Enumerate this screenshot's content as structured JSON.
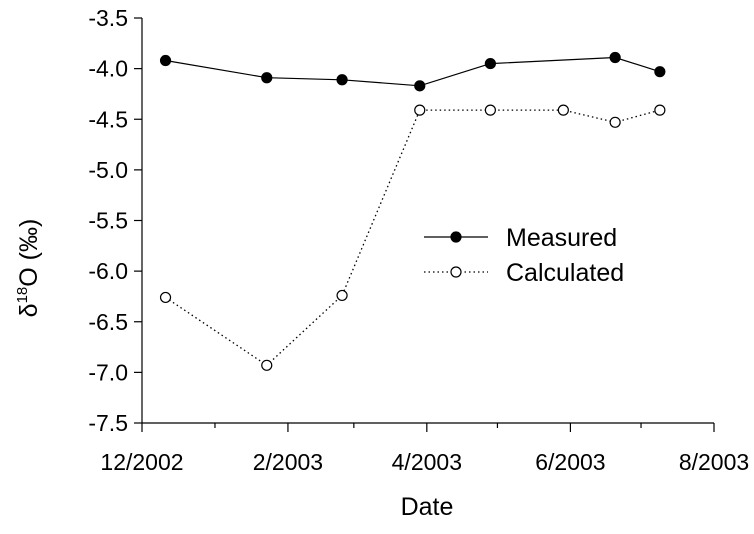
{
  "chart_data": {
    "type": "line",
    "xlabel": "Date",
    "ylabel": {
      "prefix": "δ",
      "superscript": "18",
      "suffix": "O (‰)"
    },
    "xlim": [
      "2002-12-01",
      "2003-08-01"
    ],
    "ylim": [
      -7.5,
      -3.5
    ],
    "x_ticks": [
      {
        "date": "2002-12-01",
        "label": "12/2002"
      },
      {
        "date": "2003-02-01",
        "label": "2/2003"
      },
      {
        "date": "2003-04-01",
        "label": "4/2003"
      },
      {
        "date": "2003-06-01",
        "label": "6/2003"
      },
      {
        "date": "2003-08-01",
        "label": "8/2003"
      }
    ],
    "x_minor_ticks": [
      "2003-01-01",
      "2003-03-01",
      "2003-05-01",
      "2003-07-01"
    ],
    "y_ticks": [
      -7.5,
      -7.0,
      -6.5,
      -6.0,
      -5.5,
      -5.0,
      -4.5,
      -4.0,
      -3.5
    ],
    "y_tick_labels": [
      "-7.5",
      "-7.0",
      "-6.5",
      "-6.0",
      "-5.5",
      "-5.0",
      "-4.5",
      "-4.0",
      "-3.5"
    ],
    "grid": false,
    "legend_position": "center-right",
    "series": [
      {
        "name": "Measured",
        "line_style": "solid",
        "marker": "filled-circle",
        "color": "#000000",
        "points": [
          {
            "x": "2002-12-11",
            "y": -3.92
          },
          {
            "x": "2003-01-23",
            "y": -4.09
          },
          {
            "x": "2003-02-24",
            "y": -4.11
          },
          {
            "x": "2003-03-29",
            "y": -4.17
          },
          {
            "x": "2003-04-28",
            "y": -3.95
          },
          {
            "x": "2003-06-20",
            "y": -3.89
          },
          {
            "x": "2003-07-09",
            "y": -4.03
          }
        ]
      },
      {
        "name": "Calculated",
        "line_style": "dotted",
        "marker": "open-circle",
        "color": "#000000",
        "points": [
          {
            "x": "2002-12-11",
            "y": -6.26
          },
          {
            "x": "2003-01-23",
            "y": -6.93
          },
          {
            "x": "2003-02-24",
            "y": -6.24
          },
          {
            "x": "2003-03-29",
            "y": -4.41
          },
          {
            "x": "2003-04-28",
            "y": -4.41
          },
          {
            "x": "2003-05-29",
            "y": -4.41
          },
          {
            "x": "2003-06-20",
            "y": -4.53
          },
          {
            "x": "2003-07-09",
            "y": -4.41
          }
        ]
      }
    ]
  }
}
